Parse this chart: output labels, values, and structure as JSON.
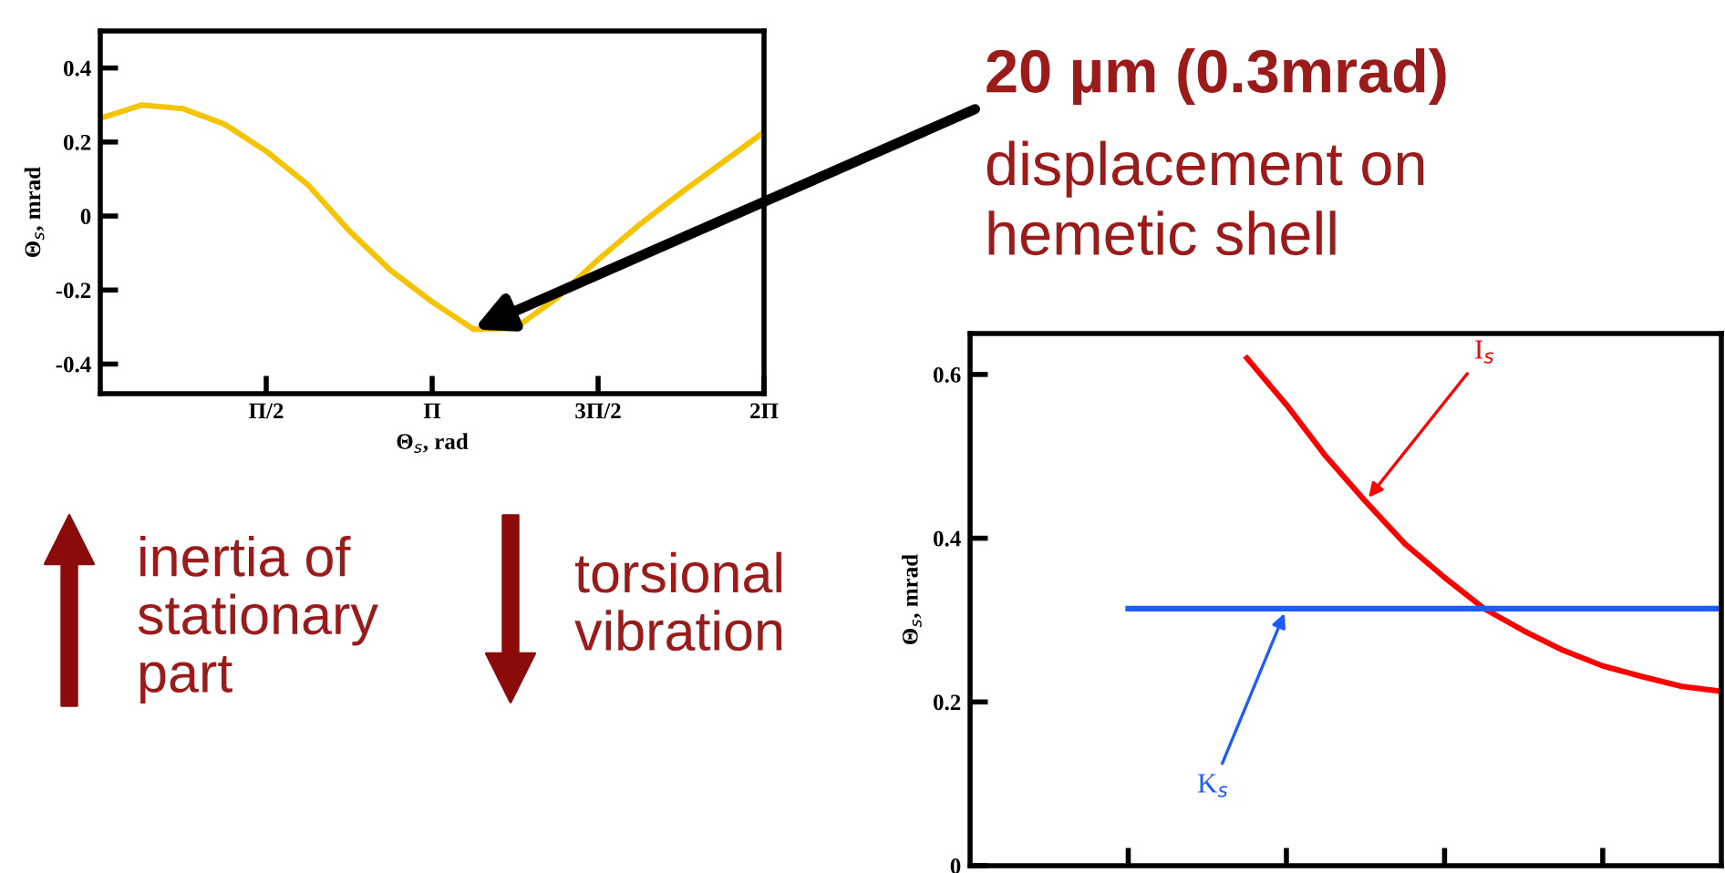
{
  "chart_data": [
    {
      "type": "line",
      "xlabel": "Θ$_{s}$, rad",
      "ylabel": "Θ$_{s}$, mrad",
      "categories": [
        null,
        null,
        null,
        null,
        "Π/2",
        null,
        null,
        null,
        "Π",
        null,
        null,
        null,
        "3Π/2",
        null,
        null,
        null,
        "2Π"
      ],
      "series": [
        {
          "color": "#f5c400",
          "values": [
            0.264,
            0.3,
            0.29,
            0.248,
            0.175,
            0.085,
            -0.04,
            -0.147,
            -0.232,
            -0.306,
            -0.303,
            -0.222,
            -0.118,
            -0.023,
            0.063,
            0.145,
            0.227
          ]
        }
      ],
      "ylim": [
        -0.48,
        0.5
      ],
      "yticks": [
        {
          "value": 0.4,
          "label": "0.4"
        },
        {
          "value": 0.2,
          "label": "0.2"
        },
        0,
        {
          "value": -0.2,
          "label": "-0.2"
        },
        {
          "value": -0.4,
          "label": "-0.4"
        }
      ],
      "grid": false,
      "legend": false,
      "marker": "none",
      "line_style": "solid",
      "annotations": [
        "20 µm (0.3mrad)",
        "displacement on\nhemetic shell",
        "inertia of\nstationary\npart",
        "torsional\nvibration"
      ]
    },
    {
      "type": "line",
      "ylabel": "Θ$_{s}$, mrad",
      "series": [
        {
          "name": "I$_{s}$",
          "color": "#ff0000",
          "values": [
            null,
            null,
            null,
            null,
            null,
            null,
            null,
            0.62,
            0.563,
            0.5,
            0.445,
            0.393,
            0.352,
            0.314,
            0.287,
            0.263,
            0.244,
            0.231,
            0.219,
            0.213
          ]
        },
        {
          "name": "K$_{s}$",
          "color": "#1a5cff",
          "values": [
            null,
            null,
            null,
            null,
            0.314,
            0.314,
            0.314,
            0.314,
            0.314,
            0.314,
            0.314,
            0.314,
            0.314,
            0.314,
            0.314,
            0.314,
            0.314,
            0.314,
            0.314,
            0.314
          ]
        }
      ],
      "categories": [
        null,
        null,
        null,
        null,
        null,
        null,
        null,
        null,
        null,
        null,
        null,
        null,
        null,
        null,
        null,
        null,
        null,
        null,
        null,
        null
      ],
      "ylim": [
        0,
        0.65
      ],
      "yticks": [
        0,
        0.2,
        0.4,
        0.6
      ],
      "grid": false,
      "legend": false,
      "marker": "none",
      "line_style": "solid"
    }
  ]
}
